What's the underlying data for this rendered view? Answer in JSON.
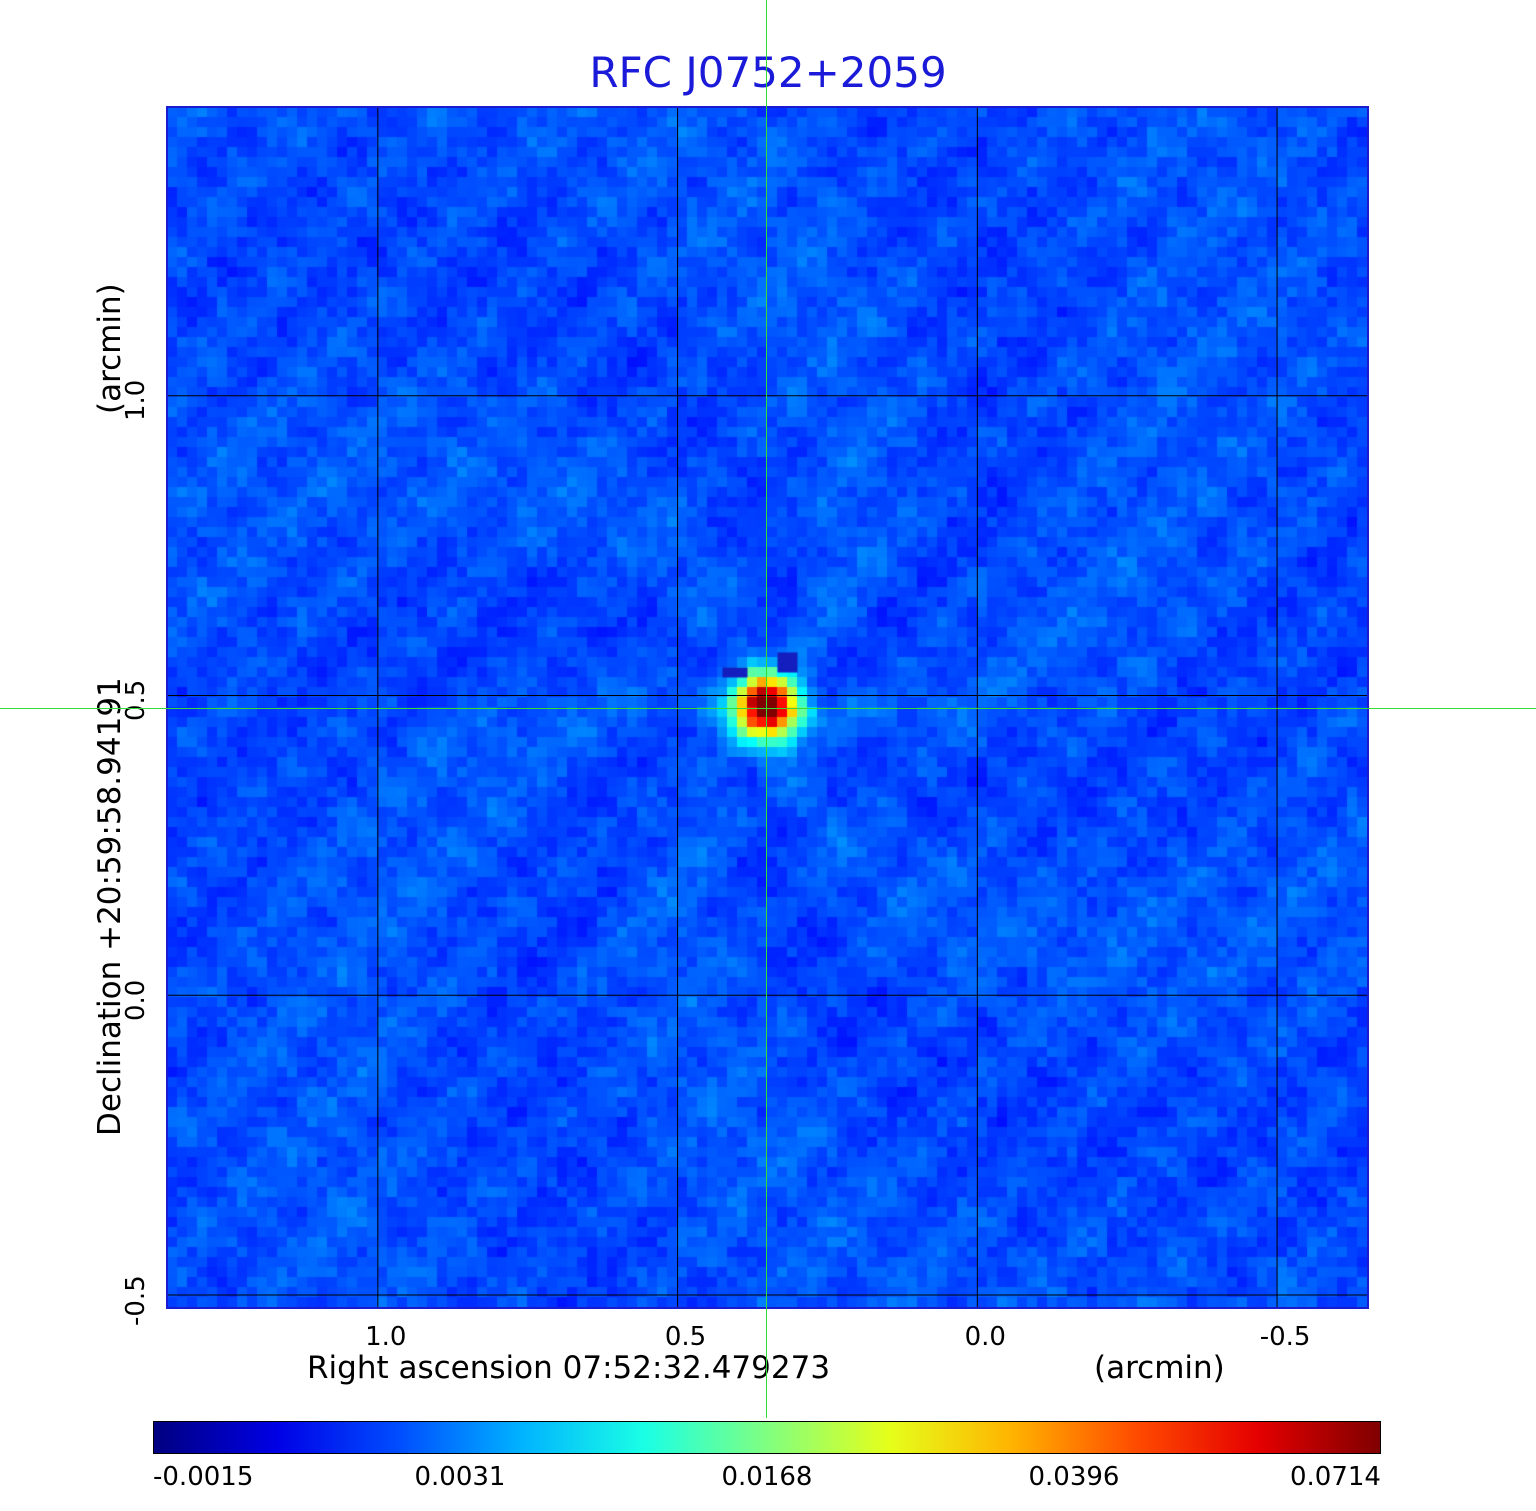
{
  "title": "RFC J0752+2059",
  "title_color": "#1a1ad8",
  "x_axis": {
    "label": "Right ascension  07:52:32.479273",
    "unit": "(arcmin)",
    "ticks": [
      "1.0",
      "0.5",
      "0.0",
      "-0.5"
    ],
    "tick_values": [
      1.0,
      0.5,
      0.0,
      -0.5
    ],
    "range": [
      1.35,
      -0.65
    ]
  },
  "y_axis": {
    "label": "Declination  +20:59:58.94191",
    "unit": "(arcmin)",
    "ticks": [
      "1.0",
      "0.5",
      "0.0",
      "-0.5"
    ],
    "tick_values": [
      1.0,
      0.5,
      0.0,
      -0.5
    ],
    "range": [
      -0.52,
      1.48
    ]
  },
  "colorbar": {
    "ticks": [
      "-0.0015",
      "0.0031",
      "0.0168",
      "0.0396",
      "0.0714"
    ],
    "colormap": "jet"
  },
  "source": {
    "ra_offset_arcmin": 0.35,
    "dec_offset_arcmin": 0.48,
    "peak": 0.0714
  },
  "crosshair_color": "#33dd33",
  "grid_color": "#000000",
  "background_level_color": "#1a4cf0"
}
